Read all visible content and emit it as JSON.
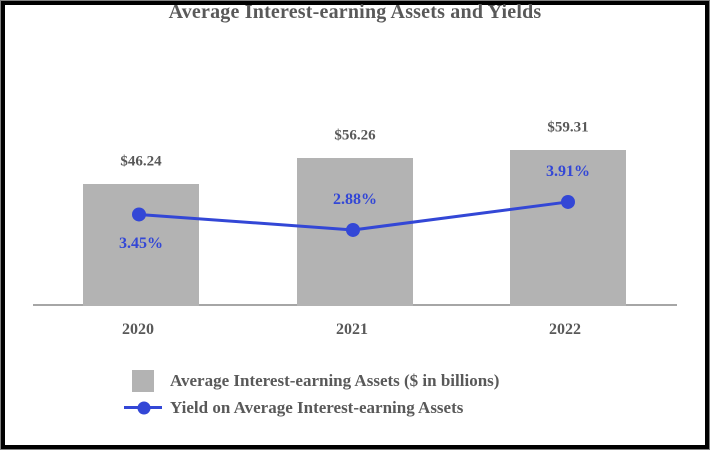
{
  "chart_data": {
    "type": "bar",
    "title": "Average Interest-earning Assets and Yields",
    "categories": [
      "2020",
      "2021",
      "2022"
    ],
    "series": [
      {
        "name": "Average Interest-earning Assets ($ in billions)",
        "type": "bar",
        "values": [
          46.24,
          56.26,
          59.31
        ],
        "labels": [
          "$46.24",
          "$56.26",
          "$59.31"
        ],
        "color": "#b3b3b3"
      },
      {
        "name": "Yield on Average Interest-earning Assets",
        "type": "line",
        "values": [
          3.45,
          2.88,
          3.91
        ],
        "labels": [
          "3.45%",
          "2.88%",
          "3.91%"
        ],
        "label_positions": [
          "below",
          "above",
          "above"
        ],
        "color": "#3347d6"
      }
    ],
    "ylim_bar": [
      0,
      60
    ],
    "grid": false,
    "legend_position": "bottom"
  },
  "colors": {
    "bar_fill": "#b3b3b3",
    "line_blue": "#3347d6",
    "text_gray": "#595959",
    "axis_gray": "#a6a6a6",
    "frame_black": "#000000"
  }
}
